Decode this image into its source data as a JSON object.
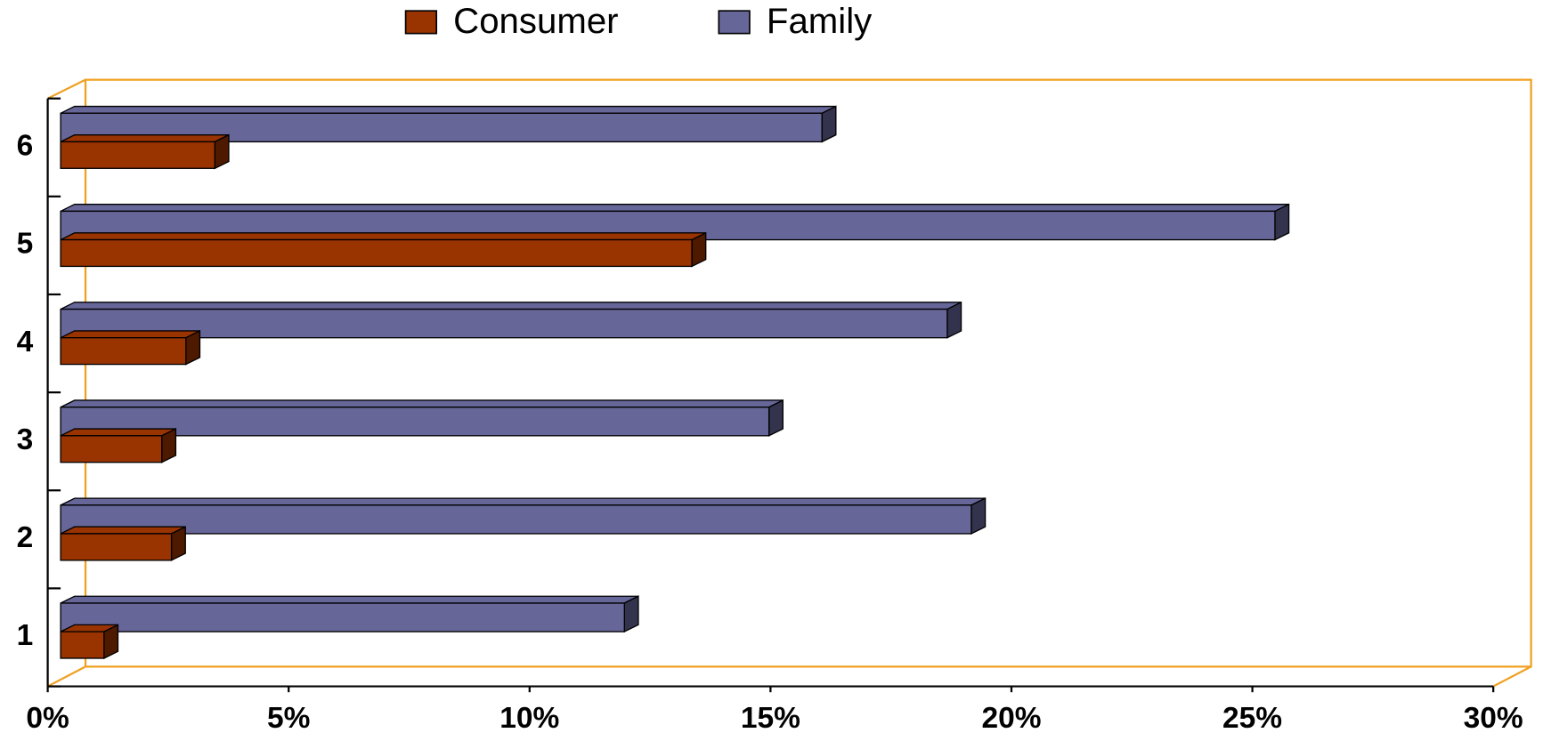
{
  "chart_data": {
    "type": "bar",
    "orientation": "horizontal",
    "three_d": true,
    "categories": [
      "1",
      "2",
      "3",
      "4",
      "5",
      "6"
    ],
    "series": [
      {
        "name": "Consumer",
        "color": "#993300",
        "values": [
          0.9,
          2.3,
          2.1,
          2.6,
          13.1,
          3.2
        ]
      },
      {
        "name": "Family",
        "color": "#666699",
        "values": [
          11.7,
          18.9,
          14.7,
          18.4,
          25.2,
          15.8
        ]
      }
    ],
    "xlim": [
      0,
      30
    ],
    "xticks": [
      {
        "value": 0,
        "label": "0%"
      },
      {
        "value": 5,
        "label": "5%"
      },
      {
        "value": 10,
        "label": "10%"
      },
      {
        "value": 15,
        "label": "15%"
      },
      {
        "value": 20,
        "label": "20%"
      },
      {
        "value": 25,
        "label": "25%"
      },
      {
        "value": 30,
        "label": "30%"
      }
    ],
    "legend": "top"
  }
}
